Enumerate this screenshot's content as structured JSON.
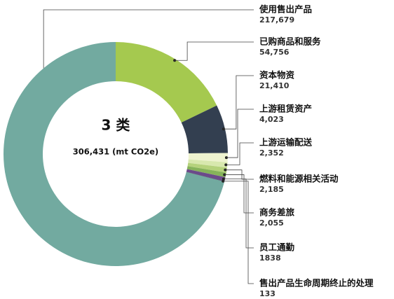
{
  "chart_data": {
    "type": "donut",
    "title": "3 类",
    "subtitle": "306,431 (mt CO2e)",
    "categories": [
      "使用售出产品",
      "已购商品和服务",
      "资本物资",
      "上游租赁资产",
      "上游运输配送",
      "燃料和能源相关活动",
      "商务差旅",
      "员工通勤",
      "售出产品生命周期终止的处理"
    ],
    "values": [
      217679,
      54756,
      21410,
      4023,
      2352,
      2185,
      2055,
      1838,
      133
    ],
    "value_labels": [
      "217,679",
      "54,756",
      "21,410",
      "4,023",
      "2,352",
      "2,185",
      "2,055",
      "1838",
      "133"
    ],
    "colors": [
      "#72aaa0",
      "#a5c94f",
      "#333f50",
      "#eef3cf",
      "#d8e8ae",
      "#b5d27c",
      "#86b35a",
      "#6b4a8a",
      "#2f3a4a"
    ]
  }
}
